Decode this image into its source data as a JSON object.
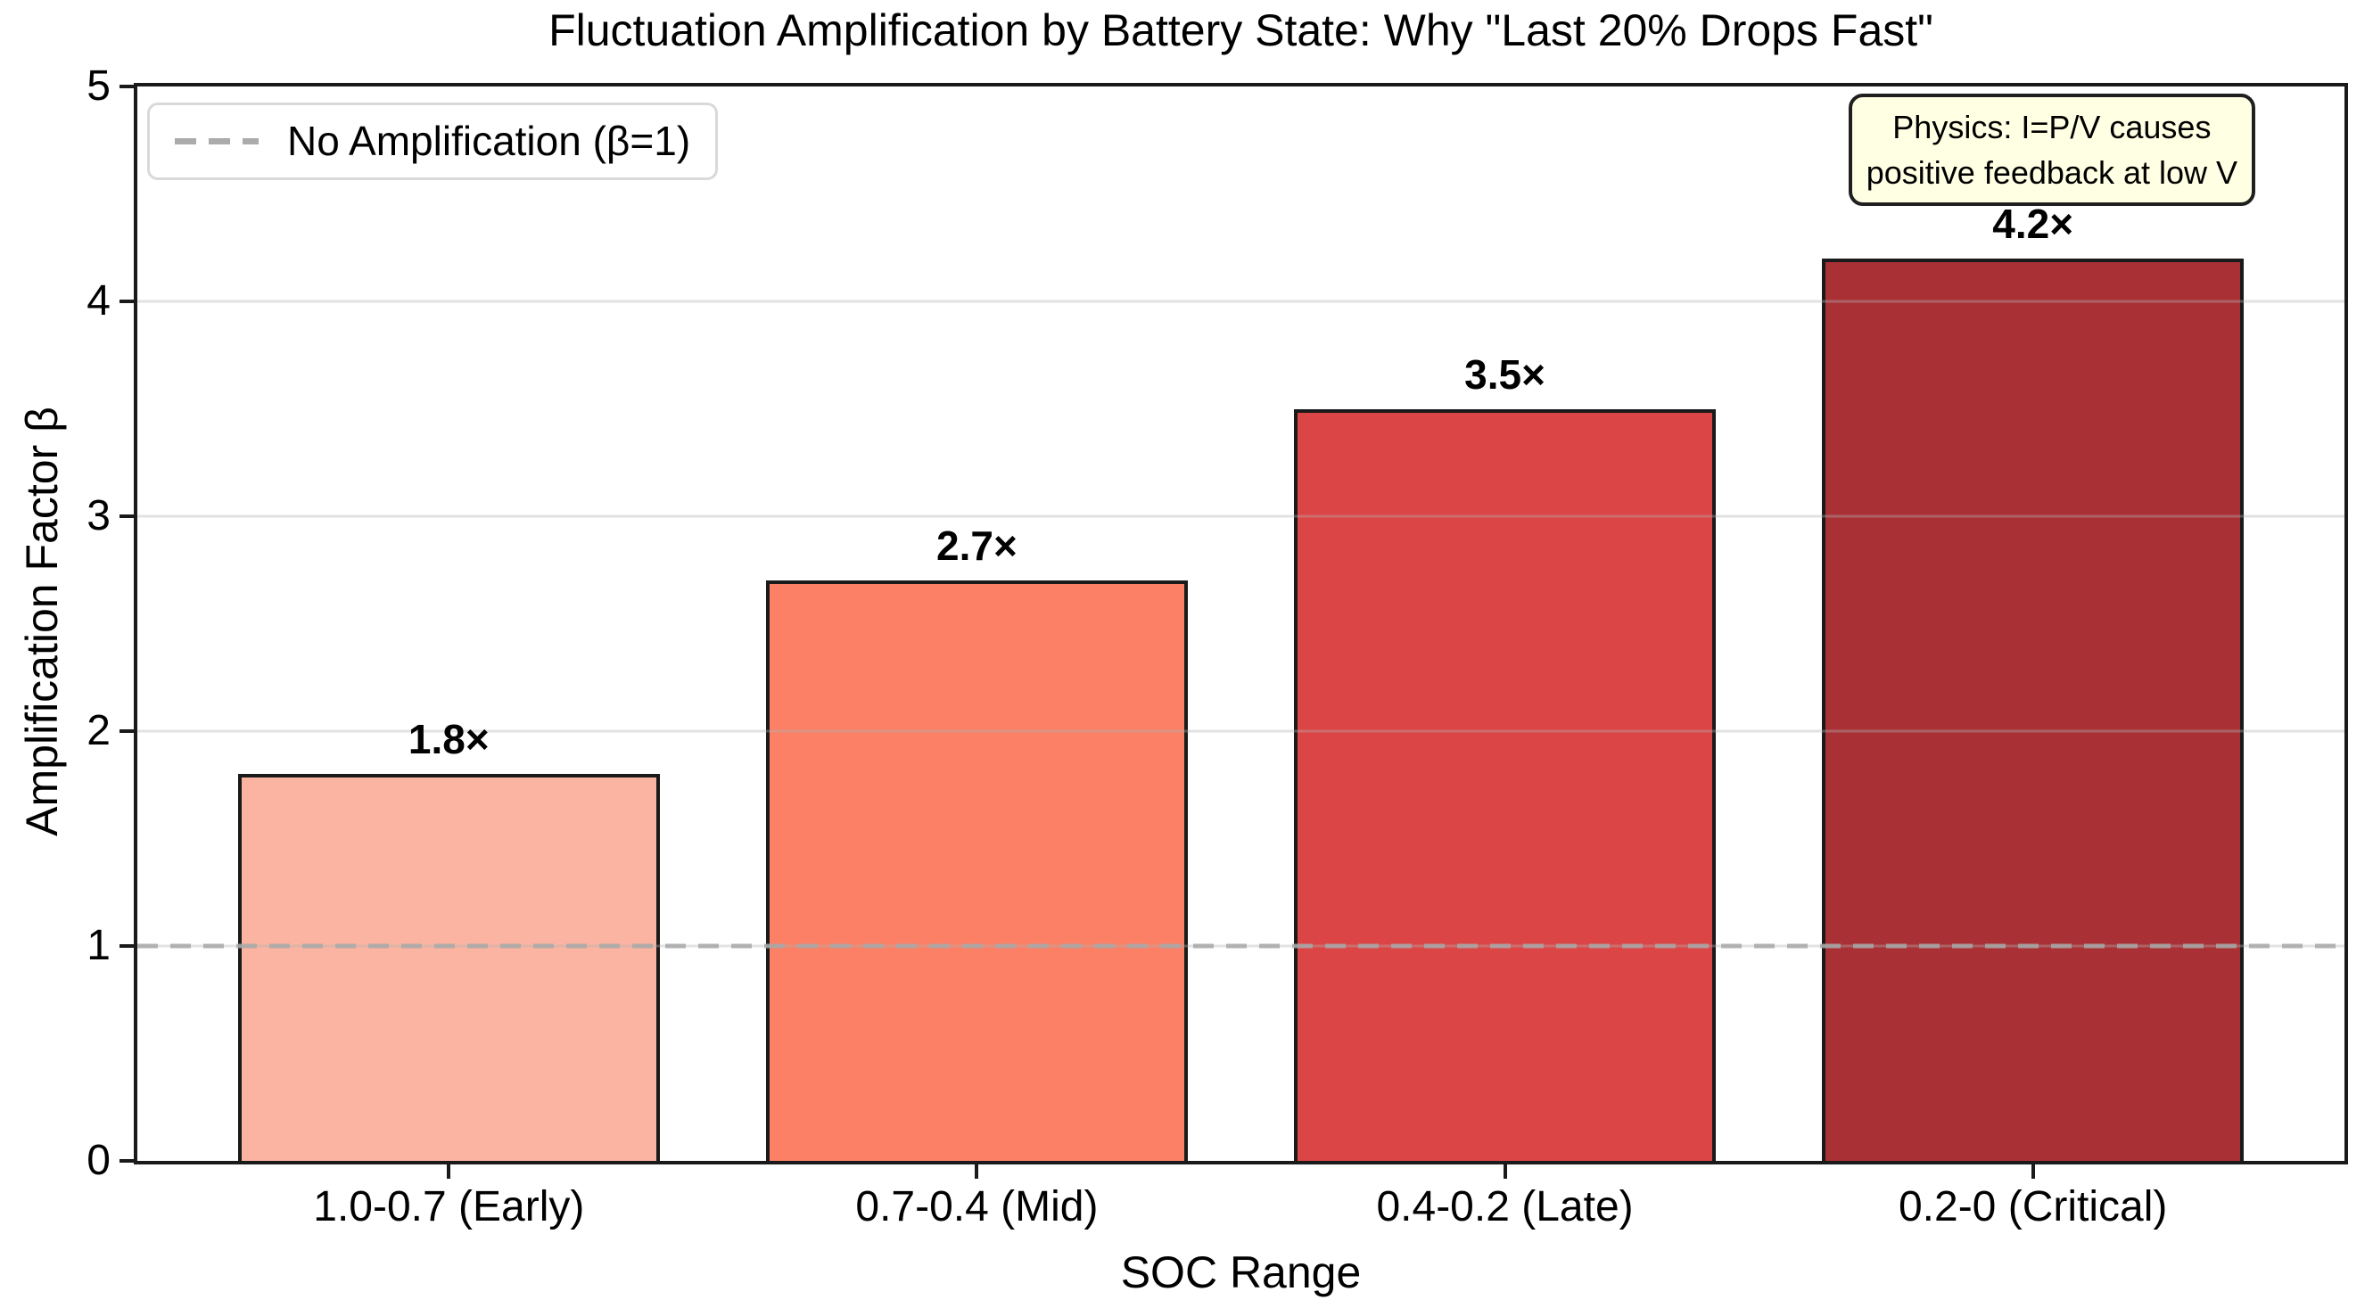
{
  "chart_data": {
    "type": "bar",
    "title": "Fluctuation Amplification by Battery State: Why \"Last 20% Drops Fast\"",
    "xlabel": "SOC Range",
    "ylabel": "Amplification Factor β",
    "categories": [
      "1.0-0.7 (Early)",
      "0.7-0.4 (Mid)",
      "0.4-0.2 (Late)",
      "0.2-0 (Critical)"
    ],
    "values": [
      1.8,
      2.7,
      3.5,
      4.2
    ],
    "bar_labels": [
      "1.8×",
      "2.7×",
      "3.5×",
      "4.2×"
    ],
    "bar_colors": [
      "#fbb4a1",
      "#fb8066",
      "#dc4545",
      "#a93136"
    ],
    "bar_edge_color": "#1a1a1a",
    "ylim": [
      0,
      5
    ],
    "yticks": [
      "0",
      "1",
      "2",
      "3",
      "4",
      "5"
    ],
    "grid": true,
    "gridline_values": [
      1,
      2,
      3,
      4
    ],
    "legend": {
      "position": "upper left",
      "label": "No Amplification (β=1)",
      "line_style": "dashed",
      "line_color": "#ababab"
    },
    "reference_line": {
      "y": 1,
      "style": "dashed",
      "color": "#ababab"
    },
    "annotation": {
      "lines": [
        "Physics: I=P/V causes",
        "positive feedback at low V"
      ],
      "bg_color": "#ffffe3",
      "border_color": "#1f1f1f"
    }
  }
}
